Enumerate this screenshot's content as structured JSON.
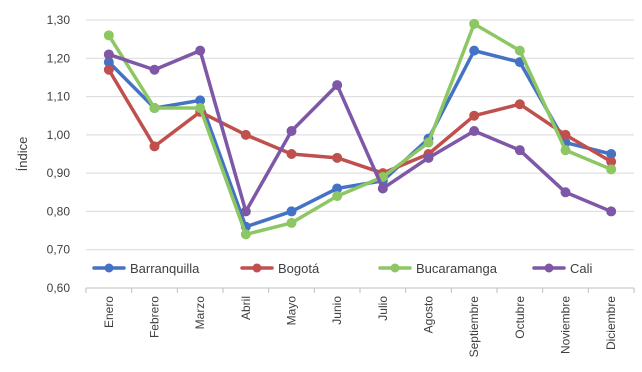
{
  "chart_data": {
    "type": "line",
    "title": "",
    "xlabel": "",
    "ylabel": "Índice",
    "ylim": [
      0.6,
      1.3
    ],
    "yticks": [
      "0,60",
      "0,70",
      "0,80",
      "0,90",
      "1,00",
      "1,10",
      "1,20",
      "1,30"
    ],
    "grid": true,
    "legend_position": "inside-bottom-left",
    "categories": [
      "Enero",
      "Febrero",
      "Marzo",
      "Abril",
      "Mayo",
      "Junio",
      "Julio",
      "Agosto",
      "Septiembre",
      "Octubre",
      "Noviembre",
      "Diciembre"
    ],
    "series": [
      {
        "name": "Barranquilla",
        "color": "#4472C4",
        "values": [
          1.19,
          1.07,
          1.09,
          0.76,
          0.8,
          0.86,
          0.88,
          0.99,
          1.22,
          1.19,
          0.98,
          0.95
        ]
      },
      {
        "name": "Bogotá",
        "color": "#C0504D",
        "values": [
          1.17,
          0.97,
          1.06,
          1.0,
          0.95,
          0.94,
          0.9,
          0.95,
          1.05,
          1.08,
          1.0,
          0.93
        ]
      },
      {
        "name": "Bucaramanga",
        "color": "#8DC763",
        "values": [
          1.26,
          1.07,
          1.07,
          0.74,
          0.77,
          0.84,
          0.89,
          0.98,
          1.29,
          1.22,
          0.96,
          0.91
        ]
      },
      {
        "name": "Cali",
        "color": "#7E57A6",
        "values": [
          1.21,
          1.17,
          1.22,
          0.8,
          1.01,
          1.13,
          0.86,
          0.94,
          1.01,
          0.96,
          0.85,
          0.8
        ]
      }
    ]
  }
}
